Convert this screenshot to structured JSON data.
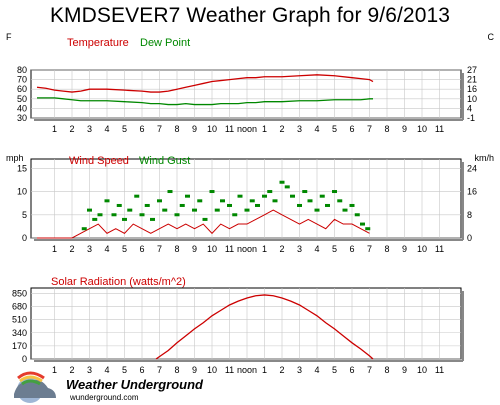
{
  "title": "KMDSEVER7 Weather Graph for 9/6/2013",
  "time_ticks": [
    "1",
    "2",
    "3",
    "4",
    "5",
    "6",
    "7",
    "8",
    "9",
    "10",
    "11",
    "noon",
    "1",
    "2",
    "3",
    "4",
    "5",
    "6",
    "7",
    "8",
    "9",
    "10",
    "11"
  ],
  "brand": {
    "name": "Weather Underground",
    "url": "wunderground.com"
  },
  "colors": {
    "temperature": "#cc0000",
    "dew_point": "#008800",
    "wind_speed": "#cc0000",
    "wind_gust": "#008800",
    "solar": "#cc0000",
    "plot_bg": "#ffffff",
    "grid": "#c8c8c8"
  },
  "chart_data": [
    {
      "type": "line",
      "left_unit": "F",
      "right_unit": "C",
      "ylim": [
        30,
        80
      ],
      "left_ticks": [
        "80",
        "70",
        "60",
        "50",
        "40",
        "30"
      ],
      "right_ticks": [
        "27",
        "21",
        "16",
        "10",
        "4",
        "-1"
      ],
      "x_hours": [
        0,
        0.5,
        1,
        1.5,
        2,
        2.5,
        3,
        4,
        5,
        6,
        6.5,
        7,
        7.5,
        8,
        8.5,
        9,
        9.5,
        10,
        10.5,
        11,
        11.5,
        12,
        12.5,
        13,
        14,
        15,
        16,
        17,
        18,
        18.5,
        19,
        19.2
      ],
      "series": [
        {
          "name": "Temperature",
          "values": [
            62,
            61,
            59,
            58,
            57,
            58,
            60,
            60,
            59,
            58,
            57,
            57,
            58,
            60,
            62,
            64,
            66,
            68,
            69,
            70,
            71,
            72,
            72,
            73,
            73,
            74,
            75,
            74,
            72,
            71,
            70,
            68
          ]
        },
        {
          "name": "Dew Point",
          "values": [
            51,
            51,
            51,
            50,
            49,
            48,
            48,
            48,
            47,
            46,
            45,
            45,
            44,
            44,
            45,
            44,
            44,
            44,
            45,
            45,
            45,
            46,
            46,
            47,
            47,
            48,
            48,
            49,
            49,
            49,
            50,
            50
          ]
        }
      ]
    },
    {
      "type": "scatter",
      "left_unit": "mph",
      "right_unit": "km/h",
      "ylim": [
        0,
        17
      ],
      "left_ticks": [
        "15",
        "10",
        "5",
        "0"
      ],
      "right_ticks": [
        "24",
        "16",
        "8",
        "0"
      ],
      "series": [
        {
          "name": "Wind Speed",
          "x_hours": [
            0,
            1,
            2,
            2.5,
            3,
            3.5,
            4,
            4.5,
            5,
            5.5,
            6,
            6.5,
            7,
            7.5,
            8,
            8.5,
            9,
            9.5,
            10,
            10.5,
            11,
            11.5,
            12,
            12.5,
            13,
            13.5,
            14,
            14.5,
            15,
            15.5,
            16,
            16.5,
            17,
            17.5,
            18,
            18.5,
            19
          ],
          "values": [
            0,
            0,
            0,
            1,
            2,
            3,
            1,
            2,
            1,
            3,
            2,
            1,
            2,
            3,
            2,
            3,
            2,
            3,
            1,
            3,
            2,
            3,
            3,
            4,
            5,
            6,
            5,
            4,
            3,
            4,
            3,
            2,
            4,
            3,
            3,
            2,
            1
          ]
        },
        {
          "name": "Wind Gust",
          "x_hours": [
            2.7,
            3.0,
            3.3,
            3.6,
            4.0,
            4.4,
            4.7,
            5.0,
            5.3,
            5.7,
            6.0,
            6.3,
            6.6,
            7.0,
            7.3,
            7.6,
            8.0,
            8.3,
            8.6,
            9.0,
            9.3,
            9.6,
            10.0,
            10.3,
            10.6,
            11.0,
            11.3,
            11.6,
            12.0,
            12.3,
            12.6,
            13.0,
            13.3,
            13.6,
            14.0,
            14.3,
            14.6,
            15.0,
            15.3,
            15.6,
            16.0,
            16.3,
            16.6,
            17.0,
            17.3,
            17.6,
            18.0,
            18.3,
            18.6,
            18.9
          ],
          "values": [
            2,
            6,
            4,
            5,
            8,
            5,
            7,
            4,
            6,
            9,
            5,
            7,
            4,
            8,
            6,
            10,
            5,
            7,
            9,
            6,
            8,
            4,
            10,
            6,
            8,
            7,
            5,
            9,
            6,
            8,
            7,
            9,
            10,
            8,
            12,
            11,
            9,
            7,
            10,
            8,
            6,
            9,
            7,
            10,
            8,
            6,
            7,
            5,
            3,
            2
          ]
        }
      ]
    },
    {
      "type": "area",
      "title": "Solar Radiation (watts/m^2)",
      "ylim": [
        0,
        920
      ],
      "left_ticks": [
        "850",
        "680",
        "510",
        "340",
        "170",
        "0"
      ],
      "series": [
        {
          "name": "Solar Radiation",
          "x_hours": [
            6.8,
            7.5,
            8,
            8.5,
            9,
            9.5,
            10,
            10.5,
            11,
            11.5,
            12,
            12.5,
            13,
            13.5,
            14,
            14.5,
            15,
            15.5,
            16,
            16.5,
            17,
            17.5,
            18,
            18.5,
            19,
            19.2
          ],
          "values": [
            0,
            110,
            210,
            300,
            390,
            470,
            560,
            630,
            700,
            750,
            790,
            820,
            830,
            820,
            790,
            750,
            700,
            630,
            560,
            470,
            390,
            300,
            210,
            130,
            40,
            0
          ]
        }
      ]
    }
  ]
}
